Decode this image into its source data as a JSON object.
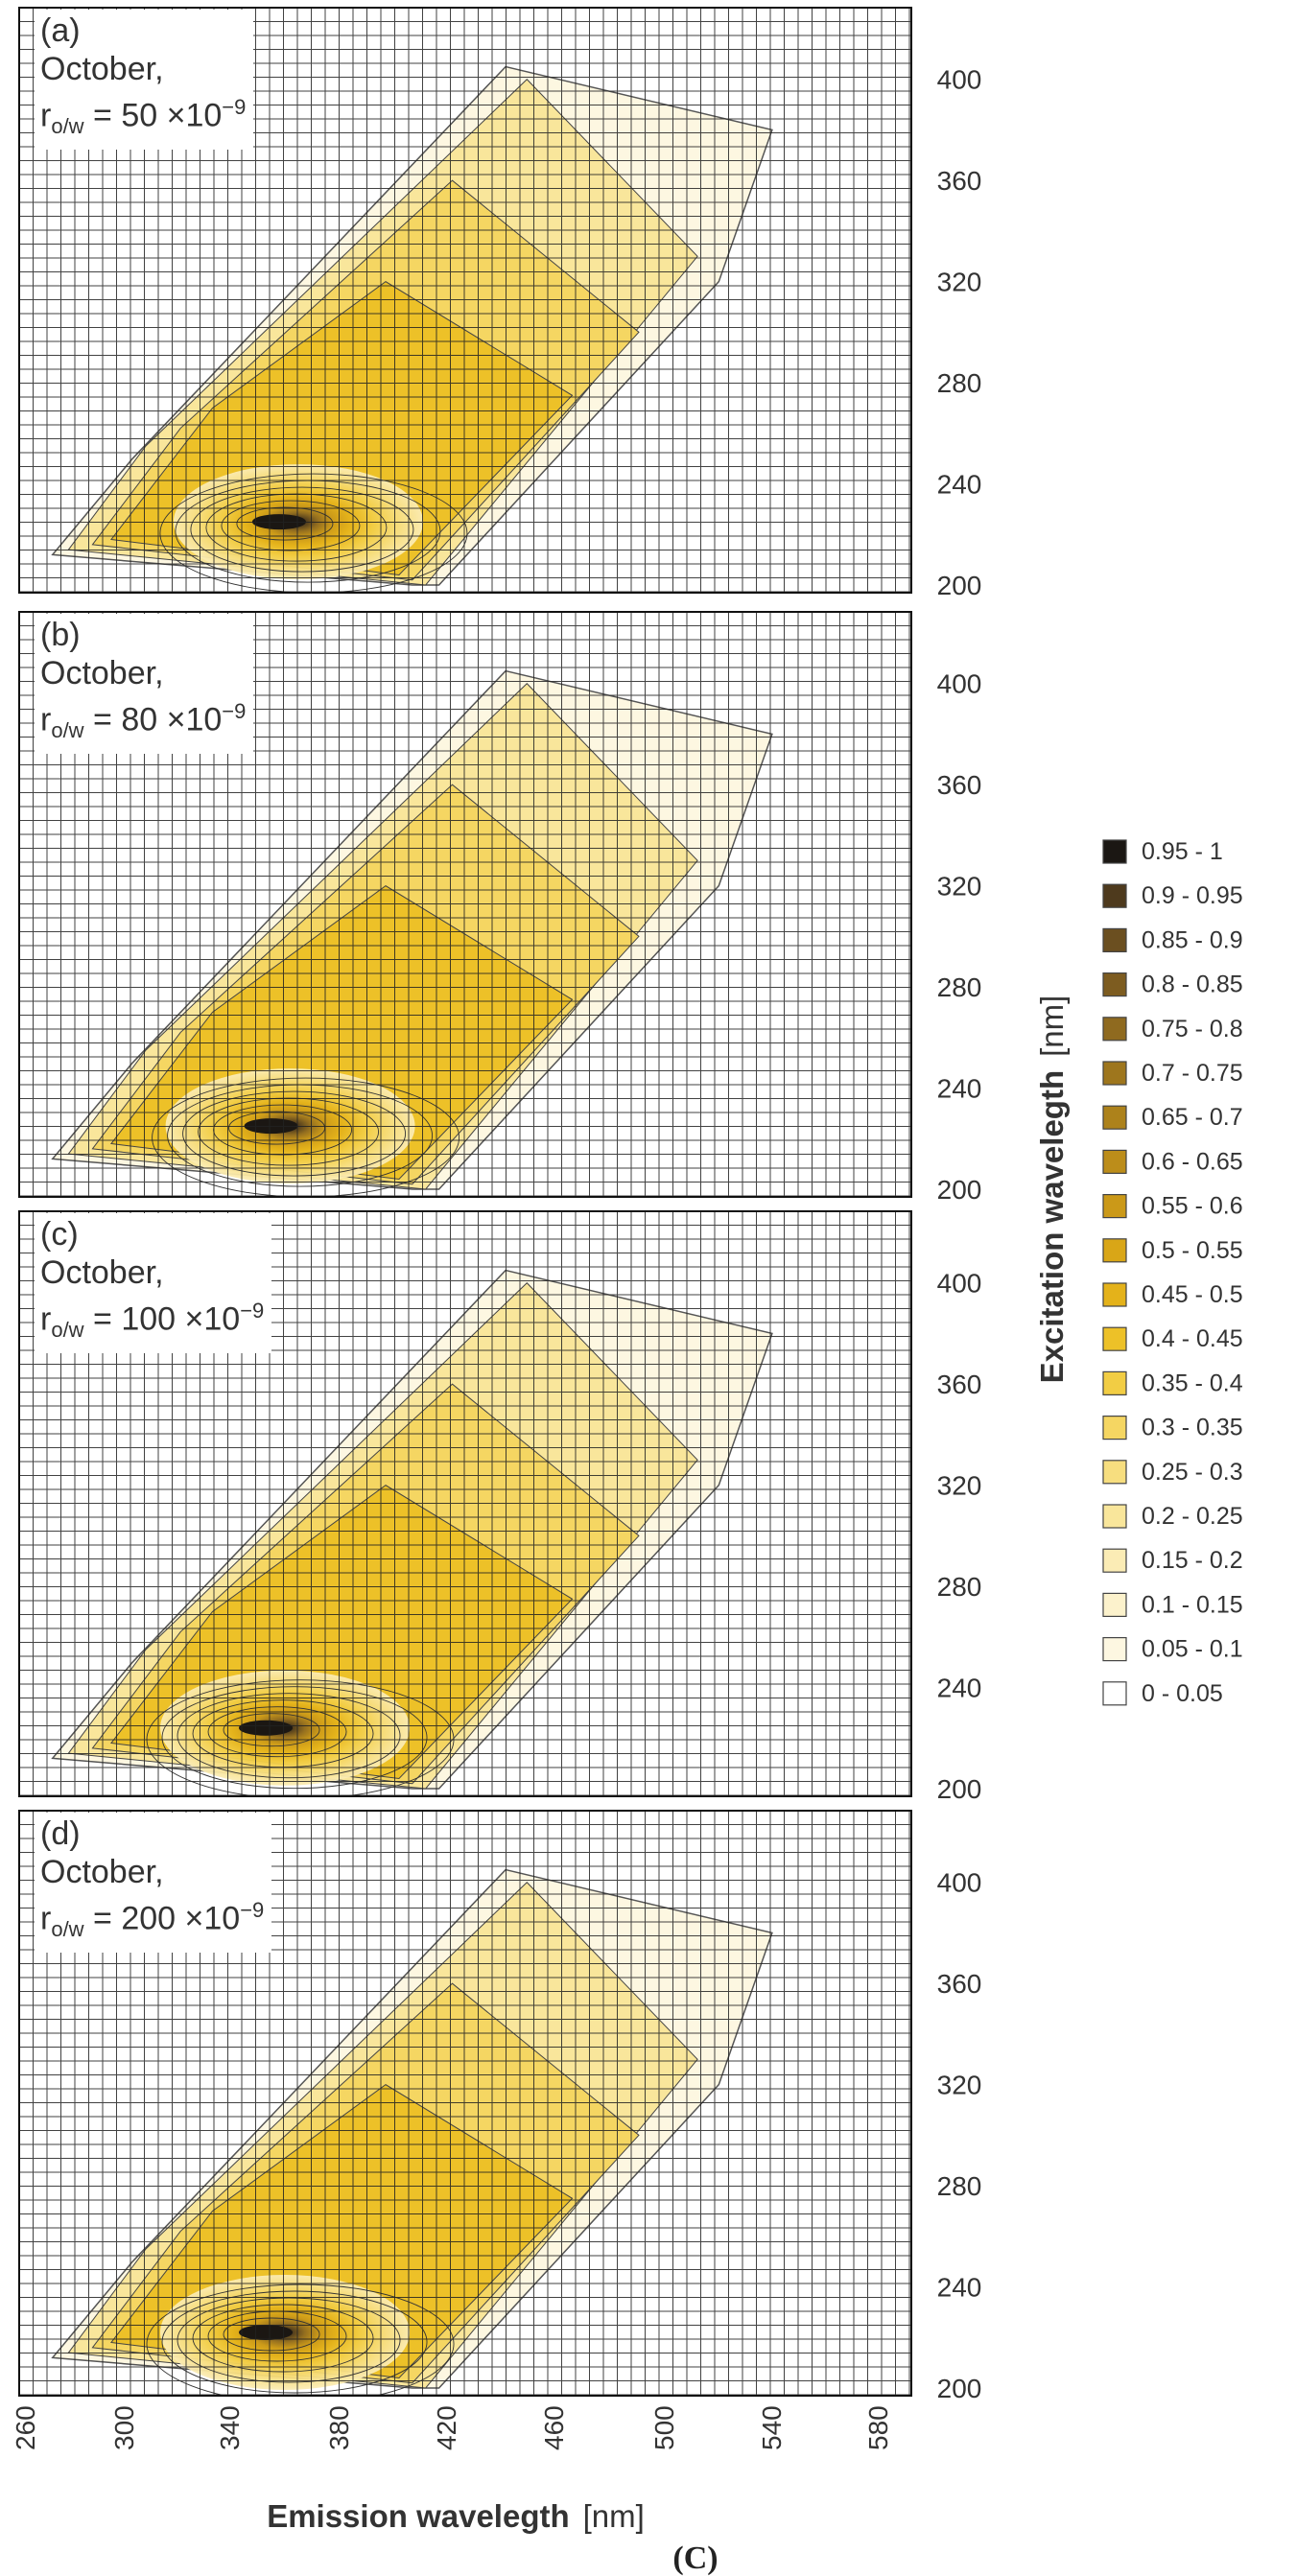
{
  "chart_data": {
    "type": "heatmap",
    "subtype": "excitation-emission contour maps",
    "caption": "(C)",
    "xlabel": "Emission wavelegth",
    "xunit": "[nm]",
    "ylabel": "Excitation wavelegth",
    "yunit": "[nm]",
    "x_ticks": [
      "260",
      "300",
      "340",
      "380",
      "420",
      "460",
      "500",
      "540",
      "580"
    ],
    "y_ticks": [
      "200",
      "240",
      "280",
      "320",
      "360",
      "400"
    ],
    "xlim": [
      260,
      600
    ],
    "ylim": [
      200,
      420
    ],
    "grid": true,
    "legend_position": "right",
    "legend": [
      {
        "label": "0.95 - 1",
        "color": "#1b1713"
      },
      {
        "label": "0.9 - 0.95",
        "color": "#4e3a1d"
      },
      {
        "label": "0.85 - 0.9",
        "color": "#6b4f20"
      },
      {
        "label": "0.8 - 0.85",
        "color": "#7d5c20"
      },
      {
        "label": "0.75 - 0.8",
        "color": "#8f6a1f"
      },
      {
        "label": "0.7 - 0.75",
        "color": "#9e761d"
      },
      {
        "label": "0.65 - 0.7",
        "color": "#ad821b"
      },
      {
        "label": "0.6 - 0.65",
        "color": "#bc8d1a"
      },
      {
        "label": "0.55 - 0.6",
        "color": "#cb9918"
      },
      {
        "label": "0.5 - 0.55",
        "color": "#d9a617"
      },
      {
        "label": "0.45 - 0.5",
        "color": "#e4b21a"
      },
      {
        "label": "0.4 - 0.45",
        "color": "#edc128"
      },
      {
        "label": "0.35 - 0.4",
        "color": "#f2cd44"
      },
      {
        "label": "0.3 - 0.35",
        "color": "#f5d662"
      },
      {
        "label": "0.25 - 0.3",
        "color": "#f7de7f"
      },
      {
        "label": "0.2 - 0.25",
        "color": "#f9e69b"
      },
      {
        "label": "0.15 - 0.2",
        "color": "#fbecb5"
      },
      {
        "label": "0.1 - 0.15",
        "color": "#fcf2cc"
      },
      {
        "label": "0.05 - 0.1",
        "color": "#fdf7e1"
      },
      {
        "label": "0 - 0.05",
        "color": "#ffffff"
      }
    ],
    "panels": [
      {
        "id": "(a)",
        "month": "October,",
        "ratio_prefix": "r",
        "ratio_sub": "o/w",
        "ratio_text": "= 50 ×10",
        "ratio_exp": "−9",
        "peak_emission": 355,
        "peak_excitation": 225
      },
      {
        "id": "(b)",
        "month": "October,",
        "ratio_prefix": "r",
        "ratio_sub": "o/w",
        "ratio_text": "= 80 ×10",
        "ratio_exp": "−9",
        "peak_emission": 352,
        "peak_excitation": 225
      },
      {
        "id": "(c)",
        "month": "October,",
        "ratio_prefix": "r",
        "ratio_sub": "o/w",
        "ratio_text": "= 100 ×10",
        "ratio_exp": "−9",
        "peak_emission": 350,
        "peak_excitation": 224
      },
      {
        "id": "(d)",
        "month": "October,",
        "ratio_prefix": "r",
        "ratio_sub": "o/w",
        "ratio_text": "= 200 ×10",
        "ratio_exp": "−9",
        "peak_emission": 350,
        "peak_excitation": 222
      }
    ]
  }
}
